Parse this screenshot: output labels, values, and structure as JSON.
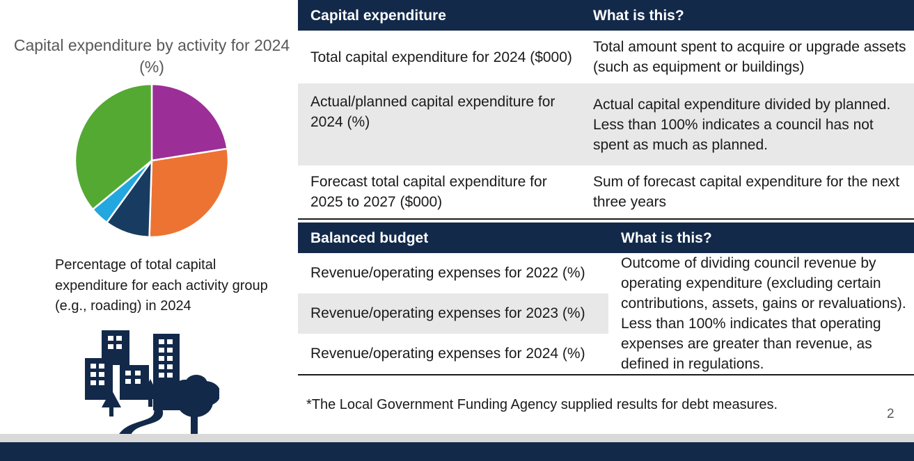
{
  "chart": {
    "title": "Capital expenditure by activity for 2024 (%)",
    "caption": "Percentage of total capital expenditure for each activity group (e.g., roading) in 2024"
  },
  "chart_data": {
    "type": "pie",
    "title": "Capital expenditure by activity for 2024 (%)",
    "series": [
      {
        "values": [
          22.5,
          28,
          9.5,
          4,
          36
        ],
        "colors": [
          "#9b2f97",
          "#ed7332",
          "#183c61",
          "#23a7e0",
          "#54a933"
        ]
      }
    ],
    "colors": [
      "#9b2f97",
      "#ed7332",
      "#183c61",
      "#23a7e0",
      "#54a933"
    ]
  },
  "capital_table": {
    "headers": [
      "Capital expenditure",
      "What is this?"
    ],
    "rows": [
      {
        "metric": "Total capital expenditure for 2024 ($000)",
        "description": "Total amount spent to acquire or upgrade assets (such as equipment or buildings)"
      },
      {
        "metric": "Actual/planned capital expenditure for 2024 (%)",
        "description": "Actual capital expenditure divided by planned. Less than 100% indicates a council has not spent as much as planned."
      },
      {
        "metric": "Forecast total capital expenditure for 2025 to 2027 ($000)",
        "description": "Sum of forecast capital expenditure for the next three years"
      }
    ]
  },
  "budget_table": {
    "headers": [
      "Balanced budget",
      "What is this?"
    ],
    "rows": [
      {
        "metric": "Revenue/operating expenses for 2022 (%)"
      },
      {
        "metric": "Revenue/operating expenses for 2023 (%)"
      },
      {
        "metric": "Revenue/operating expenses for 2024 (%)"
      }
    ],
    "description": "Outcome of dividing council revenue by operating expenditure (excluding certain contributions, assets, gains or revaluations). Less than 100% indicates that operating expenses are greater than revenue, as defined in regulations."
  },
  "footnote": "*The Local Government Funding Agency supplied results for debt measures.",
  "page_number": "2",
  "colors": {
    "navy": "#12294a",
    "row_shade": "#e8e8e8"
  },
  "icons": [
    "city-buildings-icon"
  ]
}
